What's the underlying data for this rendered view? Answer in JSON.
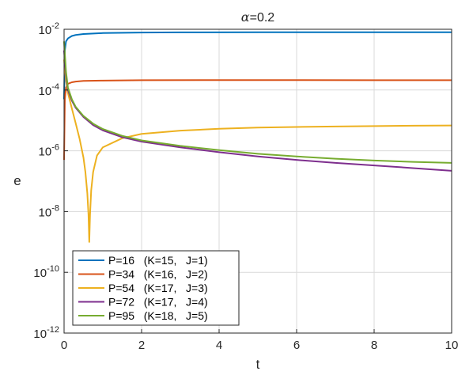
{
  "chart_data": {
    "type": "line",
    "title_prefix": "α",
    "title_suffix": "=0.2",
    "xlabel": "t",
    "ylabel": "e",
    "xlim": [
      0,
      10
    ],
    "ylim": [
      1e-12,
      0.01
    ],
    "yscale": "log",
    "grid": true,
    "legend_position": "bottom-left",
    "x_ticks": [
      {
        "value": 0,
        "label": "0"
      },
      {
        "value": 2,
        "label": "2"
      },
      {
        "value": 4,
        "label": "4"
      },
      {
        "value": 6,
        "label": "6"
      },
      {
        "value": 8,
        "label": "8"
      },
      {
        "value": 10,
        "label": "10"
      }
    ],
    "y_ticks": [
      {
        "value": 1e-12,
        "mantissa": "10",
        "exponent": "-12"
      },
      {
        "value": 1e-10,
        "mantissa": "10",
        "exponent": "-10"
      },
      {
        "value": 1e-08,
        "mantissa": "10",
        "exponent": "-8"
      },
      {
        "value": 1e-06,
        "mantissa": "10",
        "exponent": "-6"
      },
      {
        "value": 0.0001,
        "mantissa": "10",
        "exponent": "-4"
      },
      {
        "value": 0.01,
        "mantissa": "10",
        "exponent": "-2"
      }
    ],
    "series": [
      {
        "name": "P=16   (K=15,   J=1)",
        "color": "#0072BD",
        "points": [
          [
            0,
            5e-05
          ],
          [
            0.02,
            0.002
          ],
          [
            0.05,
            0.004
          ],
          [
            0.1,
            0.005
          ],
          [
            0.2,
            0.006
          ],
          [
            0.3,
            0.0065
          ],
          [
            0.5,
            0.007
          ],
          [
            1,
            0.0075
          ],
          [
            2,
            0.0078
          ],
          [
            3,
            0.0079
          ],
          [
            5,
            0.008
          ],
          [
            7,
            0.008
          ],
          [
            10,
            0.008
          ]
        ]
      },
      {
        "name": "P=34   (K=16,   J=2)",
        "color": "#D95319",
        "points": [
          [
            0,
            5e-07
          ],
          [
            0.02,
            5e-05
          ],
          [
            0.05,
            0.00012
          ],
          [
            0.1,
            0.00016
          ],
          [
            0.2,
            0.00018
          ],
          [
            0.3,
            0.00019
          ],
          [
            0.5,
            0.0002
          ],
          [
            1,
            0.000205
          ],
          [
            2,
            0.00021
          ],
          [
            4,
            0.000212
          ],
          [
            6,
            0.000212
          ],
          [
            8,
            0.00021
          ],
          [
            10,
            0.00021
          ]
        ]
      },
      {
        "name": "P=54   (K=17,   J=3)",
        "color": "#EDB120",
        "points": [
          [
            0,
            0.001
          ],
          [
            0.05,
            0.0002
          ],
          [
            0.1,
            8e-05
          ],
          [
            0.2,
            2.5e-05
          ],
          [
            0.3,
            8e-06
          ],
          [
            0.4,
            2.5e-06
          ],
          [
            0.5,
            6e-07
          ],
          [
            0.55,
            2e-07
          ],
          [
            0.6,
            4e-08
          ],
          [
            0.63,
            8e-09
          ],
          [
            0.65,
            1e-09
          ],
          [
            0.67,
            8e-09
          ],
          [
            0.7,
            5e-08
          ],
          [
            0.75,
            2e-07
          ],
          [
            0.85,
            7e-07
          ],
          [
            1,
            1.3e-06
          ],
          [
            1.5,
            2.6e-06
          ],
          [
            2,
            3.6e-06
          ],
          [
            3,
            4.6e-06
          ],
          [
            4,
            5.3e-06
          ],
          [
            5,
            5.8e-06
          ],
          [
            6,
            6.1e-06
          ],
          [
            7,
            6.3e-06
          ],
          [
            8,
            6.5e-06
          ],
          [
            9,
            6.7e-06
          ],
          [
            10,
            6.8e-06
          ]
        ]
      },
      {
        "name": "P=72   (K=17,   J=4)",
        "color": "#7E2F8E",
        "points": [
          [
            0,
            0.002
          ],
          [
            0.05,
            0.0003
          ],
          [
            0.1,
            0.0001
          ],
          [
            0.2,
            4.5e-05
          ],
          [
            0.3,
            2.6e-05
          ],
          [
            0.5,
            1.3e-05
          ],
          [
            0.75,
            7e-06
          ],
          [
            1,
            4.7e-06
          ],
          [
            1.5,
            2.8e-06
          ],
          [
            2,
            2e-06
          ],
          [
            3,
            1.3e-06
          ],
          [
            4,
            9e-07
          ],
          [
            5,
            6.5e-07
          ],
          [
            6,
            5e-07
          ],
          [
            7,
            4e-07
          ],
          [
            8,
            3.3e-07
          ],
          [
            9,
            2.7e-07
          ],
          [
            10,
            2.2e-07
          ]
        ]
      },
      {
        "name": "P=95   (K=18,   J=5)",
        "color": "#77AC30",
        "points": [
          [
            0,
            0.004
          ],
          [
            0.05,
            0.0004
          ],
          [
            0.1,
            0.00012
          ],
          [
            0.2,
            5e-05
          ],
          [
            0.3,
            2.8e-05
          ],
          [
            0.5,
            1.4e-05
          ],
          [
            0.75,
            7.8e-06
          ],
          [
            1,
            5.2e-06
          ],
          [
            1.5,
            3.1e-06
          ],
          [
            2,
            2.2e-06
          ],
          [
            3,
            1.45e-06
          ],
          [
            4,
            1.05e-06
          ],
          [
            5,
            8e-07
          ],
          [
            6,
            6.5e-07
          ],
          [
            7,
            5.5e-07
          ],
          [
            8,
            4.8e-07
          ],
          [
            9,
            4.3e-07
          ],
          [
            10,
            4e-07
          ]
        ]
      }
    ]
  }
}
